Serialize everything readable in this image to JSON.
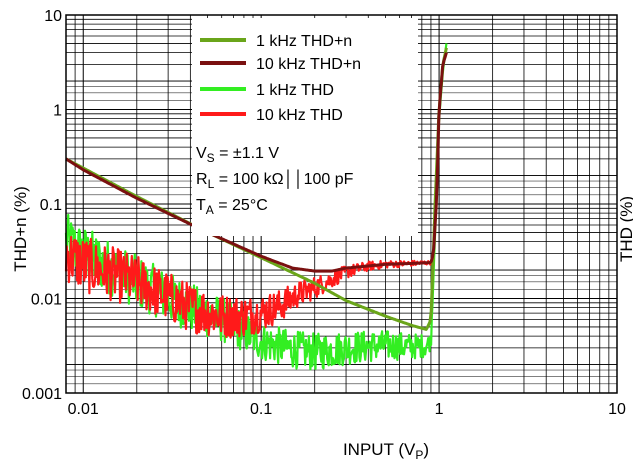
{
  "chart_data": {
    "type": "line",
    "xlabel": "INPUT (V",
    "xlabel_sub": "P",
    "xlabel_close": ")",
    "ylabel": "THD+n (%)",
    "ylabel_right": "THD (%)",
    "x_scale": "log",
    "y_scale": "log",
    "xlim": [
      0.008,
      10
    ],
    "ylim": [
      0.001,
      10
    ],
    "x_ticks": [
      {
        "value": 0.01,
        "label": "0.01"
      },
      {
        "value": 0.1,
        "label": "0.1"
      },
      {
        "value": 1,
        "label": "1"
      },
      {
        "value": 10,
        "label": "10"
      }
    ],
    "y_ticks": [
      {
        "value": 0.001,
        "label": "0.001"
      },
      {
        "value": 0.01,
        "label": "0.01"
      },
      {
        "value": 0.1,
        "label": "0.1"
      },
      {
        "value": 1,
        "label": "1"
      },
      {
        "value": 10,
        "label": "10"
      }
    ],
    "grid": true,
    "legend_position": "top-center",
    "series": [
      {
        "name": "1 kHz THD+n",
        "color": "#6aa51a",
        "x": [
          0.008,
          0.01,
          0.02,
          0.05,
          0.1,
          0.2,
          0.3,
          0.5,
          0.7,
          0.85,
          0.9,
          0.95,
          1.0,
          1.05,
          1.1
        ],
        "y": [
          0.3,
          0.24,
          0.12,
          0.05,
          0.027,
          0.0145,
          0.0095,
          0.0065,
          0.0052,
          0.0047,
          0.006,
          0.1,
          1.0,
          3.0,
          4.5
        ]
      },
      {
        "name": "10 kHz THD+n",
        "color": "#7a1010",
        "x": [
          0.008,
          0.01,
          0.02,
          0.05,
          0.1,
          0.15,
          0.2,
          0.25,
          0.3,
          0.5,
          0.7,
          0.9,
          0.93,
          0.97,
          1.0,
          1.05,
          1.1
        ],
        "y": [
          0.3,
          0.23,
          0.115,
          0.05,
          0.028,
          0.021,
          0.0195,
          0.0195,
          0.021,
          0.023,
          0.0235,
          0.024,
          0.03,
          0.12,
          1.0,
          3.0,
          4.0
        ]
      },
      {
        "name": "1 kHz THD",
        "color": "#33ee22",
        "x": [
          0.008,
          0.01,
          0.02,
          0.04,
          0.06,
          0.08,
          0.1,
          0.15,
          0.2,
          0.3,
          0.5,
          0.7,
          0.85,
          0.9,
          0.95,
          1.0,
          1.05,
          1.1
        ],
        "y": [
          0.04,
          0.03,
          0.015,
          0.008,
          0.006,
          0.0045,
          0.0035,
          0.0029,
          0.0027,
          0.003,
          0.0032,
          0.0031,
          0.0032,
          0.0035,
          0.05,
          0.8,
          2.5,
          5.0
        ],
        "noise": [
          0.3,
          0.3,
          0.28,
          0.26,
          0.24,
          0.22,
          0.2,
          0.2,
          0.2,
          0.18,
          0.16,
          0.14,
          0.12,
          0.08,
          0,
          0,
          0,
          0
        ]
      },
      {
        "name": "10 kHz THD",
        "color": "#ff1a1a",
        "x": [
          0.008,
          0.01,
          0.02,
          0.04,
          0.06,
          0.08,
          0.1,
          0.13,
          0.16,
          0.2,
          0.25,
          0.3,
          0.4,
          0.5,
          0.7,
          0.9,
          0.93,
          0.97,
          1.0,
          1.05,
          1.1
        ],
        "y": [
          0.03,
          0.023,
          0.015,
          0.008,
          0.0065,
          0.0065,
          0.007,
          0.0085,
          0.011,
          0.013,
          0.016,
          0.019,
          0.022,
          0.023,
          0.0235,
          0.024,
          0.03,
          0.12,
          1.0,
          3.0,
          4.0
        ],
        "noise": [
          0.3,
          0.3,
          0.28,
          0.26,
          0.24,
          0.22,
          0.2,
          0.17,
          0.14,
          0.12,
          0.09,
          0.07,
          0.05,
          0.04,
          0.03,
          0.02,
          0,
          0,
          0,
          0,
          0
        ]
      }
    ],
    "annotations": [
      {
        "main": "V",
        "sub": "S",
        "rest": " = ±1.1 V"
      },
      {
        "main": "R",
        "sub": "L",
        "rest": " = 100 kΩ││100 pF"
      },
      {
        "main": "T",
        "sub": "A",
        "rest": " = 25°C"
      }
    ]
  }
}
